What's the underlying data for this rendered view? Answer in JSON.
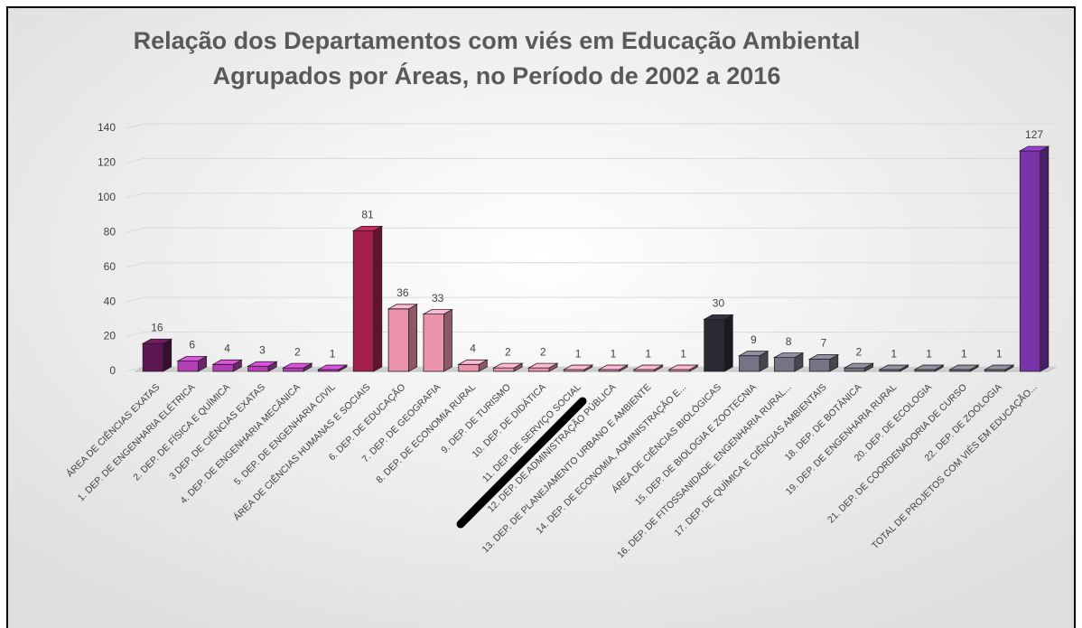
{
  "chart_data": {
    "type": "bar3d",
    "title": [
      "Relação dos Departamentos com viés em Educação Ambiental",
      "Agrupados por Áreas, no Período de 2002 a 2016"
    ],
    "categories": [
      "ÁREA DE CIÊNCIAS EXATAS",
      "1. DEP. DE ENGENHARIA ELÉTRICA",
      "2. DEP. DE FÍSICA E QUÍMICA",
      "3 DEP. DE CIÊNCIAS EXATAS",
      "4. DEP. DE ENGENHARIA MECÂNICA",
      "5. DEP. DE ENGENHARIA CIVIL",
      "ÁREA DE CIÊNCIAS  HUMANAS E SOCIAIS",
      "6. DEP. DE EDUCAÇÃO",
      "7. DEP. DE GEOGRAFIA",
      "8. DEP. DE ECONOMIA RURAL",
      "9. DEP. DE TURISMO",
      "10. DEP. DE DIDÁTICA",
      "11. DEP. DE SERVIÇO SOCIAL",
      "12. DEP. DE ADMINISTRAÇÃO PÚBLICA",
      "13. DEP. DE PLANEJAMENTO URBANO E AMBIENTE",
      "14. DEP. DE ECONOMIA, ADMINISTRAÇÃO E...",
      "ÁREA DE  CIÊNCIAS BIOLÓGICAS",
      "15. DEP. DE BIOLOGIA E ZOOTECNIA",
      "16. DEP. DE FITOSSANIDADE, ENGENHARIA RURAL...",
      "17. DEP. DE QUÍMICA E CIÊNCIAS AMBIENTAIS",
      "18. DEP. DE BOTÂNICA",
      "19. DEP. DE ENGENHARIA RURAL",
      "20. DEP. DE ECOLOGIA",
      "21. DEP. DE COORDENADORIA DE CURSO",
      "22. DEP. DE ZOOLOGIA",
      "TOTAL DE PROJETOS COM VIÉS EM EDUCAÇÃO..."
    ],
    "values": [
      16,
      6,
      4,
      3,
      2,
      1,
      81,
      36,
      33,
      4,
      2,
      2,
      1,
      1,
      1,
      1,
      30,
      9,
      8,
      7,
      2,
      1,
      1,
      1,
      1,
      127
    ],
    "colors": [
      "#5c1652",
      "#b23fb5",
      "#b23fb5",
      "#b23fb5",
      "#b23fb5",
      "#b23fb5",
      "#a3204b",
      "#eb93ab",
      "#eb93ab",
      "#eb93ab",
      "#eb93ab",
      "#eb93ab",
      "#eb93ab",
      "#eb93ab",
      "#eb93ab",
      "#eb93ab",
      "#2b2a32",
      "#747484",
      "#747484",
      "#747484",
      "#747484",
      "#747484",
      "#747484",
      "#747484",
      "#747484",
      "#7a33a8"
    ],
    "ylim": [
      0,
      140
    ],
    "yticks": [
      0,
      20,
      40,
      60,
      80,
      100,
      120,
      140
    ],
    "grid": true
  }
}
